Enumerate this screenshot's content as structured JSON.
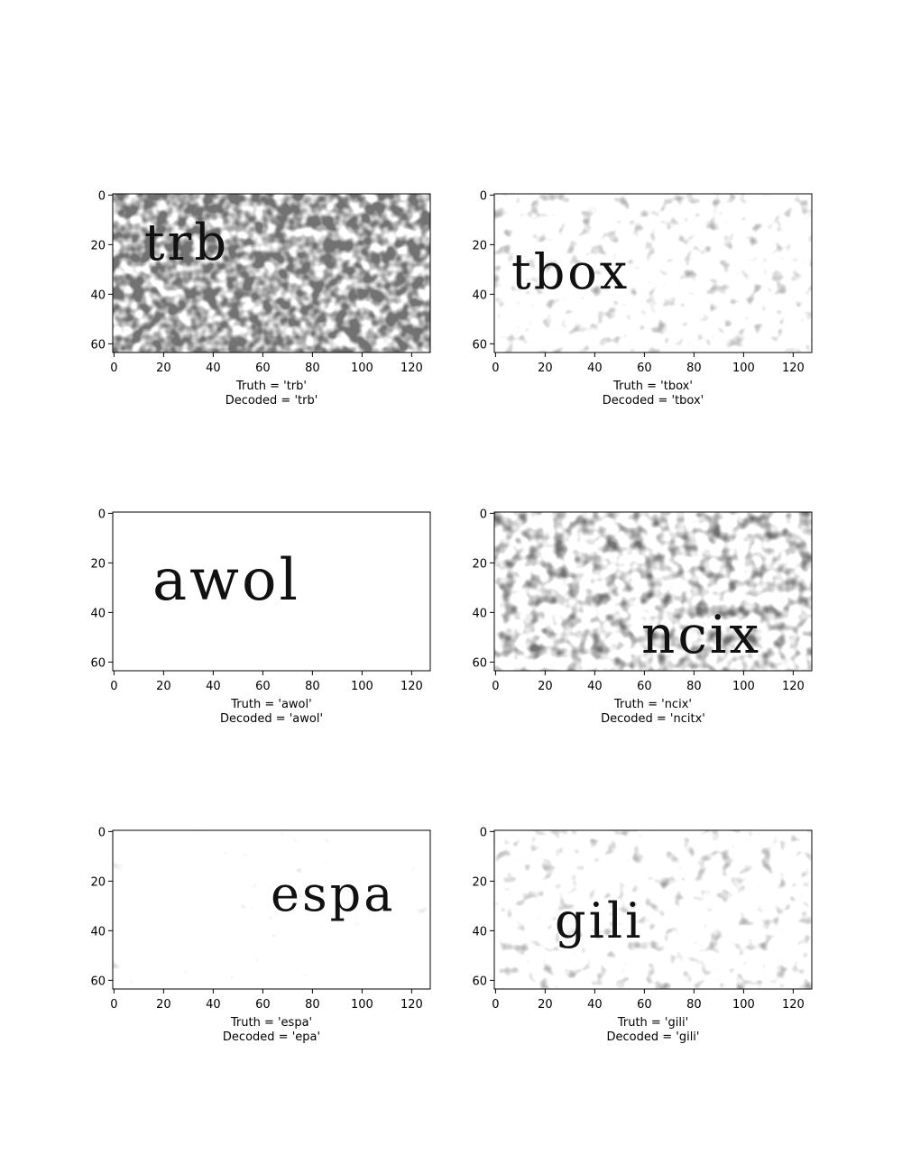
{
  "chart_data": [
    {
      "type": "image",
      "truth": "trb",
      "decoded": "trb",
      "caption_truth": "Truth = 'trb'",
      "caption_decoded": "Decoded = 'trb'",
      "xticks": [
        "0",
        "20",
        "40",
        "60",
        "80",
        "100",
        "120"
      ],
      "yticks": [
        "0",
        "20",
        "40",
        "60"
      ],
      "xlim": [
        0,
        128
      ],
      "ylim": [
        0,
        64
      ],
      "noise": "heavy"
    },
    {
      "type": "image",
      "truth": "tbox",
      "decoded": "tbox",
      "caption_truth": "Truth = 'tbox'",
      "caption_decoded": "Decoded = 'tbox'",
      "xticks": [
        "0",
        "20",
        "40",
        "60",
        "80",
        "100",
        "120"
      ],
      "yticks": [
        "0",
        "20",
        "40",
        "60"
      ],
      "xlim": [
        0,
        128
      ],
      "ylim": [
        0,
        64
      ],
      "noise": "light"
    },
    {
      "type": "image",
      "truth": "awol",
      "decoded": "awol",
      "caption_truth": "Truth = 'awol'",
      "caption_decoded": "Decoded = 'awol'",
      "xticks": [
        "0",
        "20",
        "40",
        "60",
        "80",
        "100",
        "120"
      ],
      "yticks": [
        "0",
        "20",
        "40",
        "60"
      ],
      "xlim": [
        0,
        128
      ],
      "ylim": [
        0,
        64
      ],
      "noise": "none"
    },
    {
      "type": "image",
      "truth": "ncix",
      "decoded": "ncitx",
      "caption_truth": "Truth = 'ncix'",
      "caption_decoded": "Decoded = 'ncitx'",
      "xticks": [
        "0",
        "20",
        "40",
        "60",
        "80",
        "100",
        "120"
      ],
      "yticks": [
        "0",
        "20",
        "40",
        "60"
      ],
      "xlim": [
        0,
        128
      ],
      "ylim": [
        0,
        64
      ],
      "noise": "medium"
    },
    {
      "type": "image",
      "truth": "espa",
      "decoded": "epa",
      "caption_truth": "Truth = 'espa'",
      "caption_decoded": "Decoded = 'epa'",
      "xticks": [
        "0",
        "20",
        "40",
        "60",
        "80",
        "100",
        "120"
      ],
      "yticks": [
        "0",
        "20",
        "40",
        "60"
      ],
      "xlim": [
        0,
        128
      ],
      "ylim": [
        0,
        64
      ],
      "noise": "very light"
    },
    {
      "type": "image",
      "truth": "gili",
      "decoded": "gili",
      "caption_truth": "Truth = 'gili'",
      "caption_decoded": "Decoded = 'gili'",
      "xticks": [
        "0",
        "20",
        "40",
        "60",
        "80",
        "100",
        "120"
      ],
      "yticks": [
        "0",
        "20",
        "40",
        "60"
      ],
      "xlim": [
        0,
        128
      ],
      "ylim": [
        0,
        64
      ],
      "noise": "light"
    }
  ]
}
